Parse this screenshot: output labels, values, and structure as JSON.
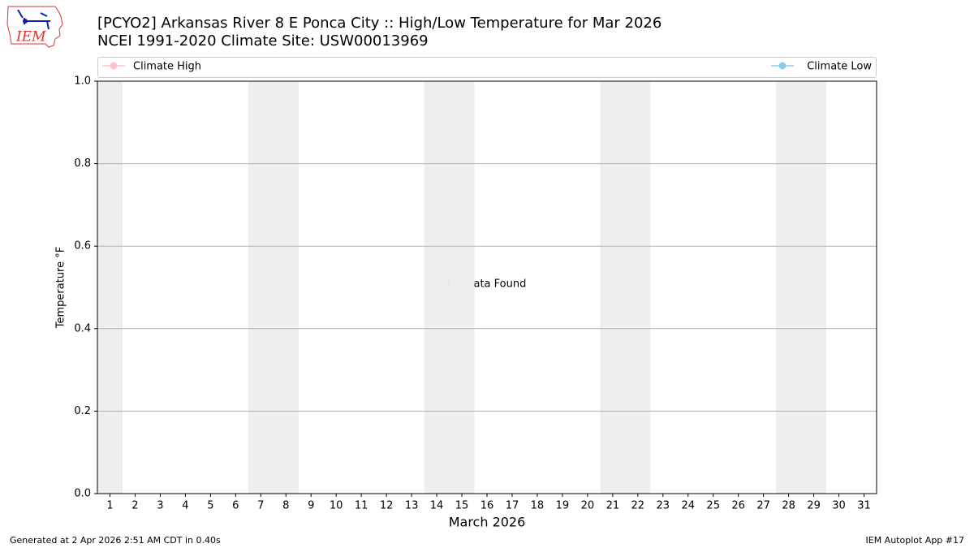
{
  "logo": {
    "text": "IEM"
  },
  "chart_data": {
    "type": "line",
    "title": "[PCYO2] Arkansas River 8 E Ponca City :: High/Low Temperature for Mar 2026",
    "subtitle": "NCEI 1991-2020 Climate Site: USW00013969",
    "ylabel": "Temperature °F",
    "xlabel": "March 2026",
    "annotation": "No Data Found",
    "x": [
      1,
      2,
      3,
      4,
      5,
      6,
      7,
      8,
      9,
      10,
      11,
      12,
      13,
      14,
      15,
      16,
      17,
      18,
      19,
      20,
      21,
      22,
      23,
      24,
      25,
      26,
      27,
      28,
      29,
      30,
      31
    ],
    "series": [
      {
        "name": "Climate High",
        "color": "#ffc0cb",
        "values": [
          null,
          null,
          null,
          null,
          null,
          null,
          null,
          null,
          null,
          null,
          null,
          null,
          null,
          null,
          null,
          null,
          null,
          null,
          null,
          null,
          null,
          null,
          null,
          null,
          null,
          null,
          null,
          null,
          null,
          null,
          null
        ]
      },
      {
        "name": "Climate Low",
        "color": "#87ceeb",
        "values": [
          null,
          null,
          null,
          null,
          null,
          null,
          null,
          null,
          null,
          null,
          null,
          null,
          null,
          null,
          null,
          null,
          null,
          null,
          null,
          null,
          null,
          null,
          null,
          null,
          null,
          null,
          null,
          null,
          null,
          null,
          null
        ]
      }
    ],
    "shaded_days": [
      1,
      7,
      8,
      14,
      15,
      21,
      22,
      28,
      29
    ],
    "shade_color": "#eeeeee",
    "xlim": [
      0.5,
      31.5
    ],
    "xticks": [
      1,
      2,
      3,
      4,
      5,
      6,
      7,
      8,
      9,
      10,
      11,
      12,
      13,
      14,
      15,
      16,
      17,
      18,
      19,
      20,
      21,
      22,
      23,
      24,
      25,
      26,
      27,
      28,
      29,
      30,
      31
    ],
    "ylim": [
      0,
      1
    ],
    "yticks": [
      {
        "value": 0,
        "label": "0.0"
      },
      {
        "value": 0.2,
        "label": "0.2"
      },
      {
        "value": 0.4,
        "label": "0.4"
      },
      {
        "value": 0.6,
        "label": "0.6"
      },
      {
        "value": 0.8,
        "label": "0.8"
      },
      {
        "value": 1,
        "label": "1.0"
      }
    ],
    "grid": true
  },
  "footer": {
    "left": "Generated at 2 Apr 2026 2:51 AM CDT in 0.40s",
    "right": "IEM Autoplot App #17"
  }
}
